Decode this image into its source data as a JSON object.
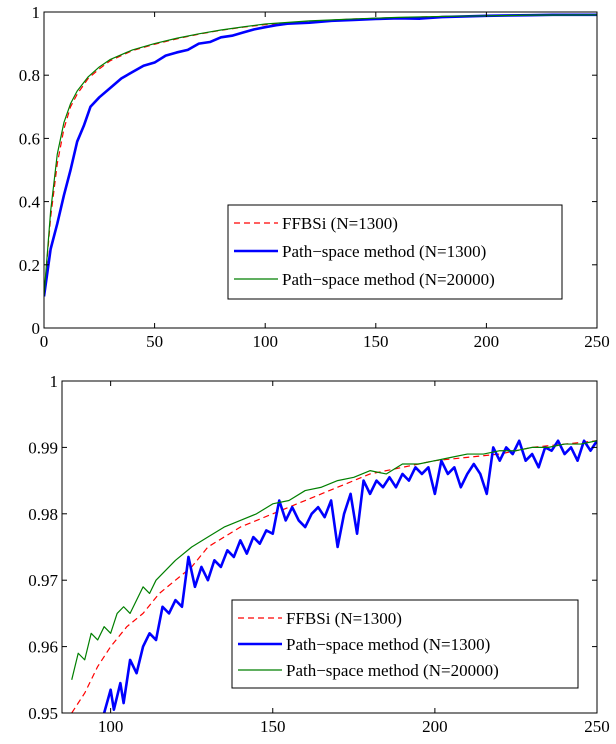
{
  "chart_data": [
    {
      "type": "line",
      "title": "",
      "xlabel": "",
      "ylabel": "",
      "xlim": [
        0,
        250
      ],
      "ylim": [
        0,
        1
      ],
      "x_ticks": [
        0,
        50,
        100,
        150,
        200,
        250
      ],
      "y_ticks": [
        0,
        0.2,
        0.4,
        0.6,
        0.8,
        1
      ],
      "x_tick_labels": [
        "0",
        "50",
        "100",
        "150",
        "200",
        "250"
      ],
      "y_tick_labels": [
        "0",
        "0.2",
        "0.4",
        "0.6",
        "0.8",
        "1"
      ],
      "grid": false,
      "legend_position": "lower-right",
      "series": [
        {
          "name": "FFBSi (N=1300)",
          "color": "#ff0000",
          "style": "dashed",
          "x": [
            0,
            3,
            6,
            9,
            12,
            15,
            20,
            25,
            30,
            40,
            50,
            60,
            70,
            80,
            90,
            100,
            120,
            140,
            160,
            180,
            200,
            220,
            250
          ],
          "y": [
            0.1,
            0.35,
            0.52,
            0.63,
            0.7,
            0.74,
            0.79,
            0.82,
            0.846,
            0.878,
            0.898,
            0.915,
            0.93,
            0.942,
            0.952,
            0.96,
            0.97,
            0.978,
            0.982,
            0.986,
            0.988,
            0.99,
            0.992
          ]
        },
        {
          "name": "Path−space method (N=1300)",
          "color": "#0000ff",
          "style": "solid",
          "x": [
            0,
            3,
            6,
            9,
            12,
            15,
            18,
            21,
            25,
            30,
            35,
            40,
            45,
            50,
            55,
            60,
            65,
            70,
            75,
            80,
            85,
            90,
            95,
            100,
            105,
            110,
            120,
            130,
            140,
            150,
            160,
            170,
            180,
            190,
            200,
            210,
            220,
            230,
            240,
            250
          ],
          "y": [
            0.1,
            0.25,
            0.33,
            0.42,
            0.5,
            0.59,
            0.64,
            0.7,
            0.73,
            0.76,
            0.79,
            0.81,
            0.83,
            0.84,
            0.862,
            0.872,
            0.88,
            0.9,
            0.905,
            0.92,
            0.925,
            0.935,
            0.945,
            0.952,
            0.958,
            0.963,
            0.966,
            0.972,
            0.975,
            0.978,
            0.98,
            0.979,
            0.984,
            0.986,
            0.988,
            0.989,
            0.99,
            0.991,
            0.991,
            0.991
          ]
        },
        {
          "name": "Path−space method (N=20000)",
          "color": "#007f00",
          "style": "solid",
          "x": [
            0,
            3,
            6,
            9,
            12,
            15,
            20,
            25,
            30,
            40,
            50,
            60,
            70,
            80,
            90,
            100,
            120,
            140,
            160,
            180,
            200,
            220,
            250
          ],
          "y": [
            0.1,
            0.37,
            0.55,
            0.65,
            0.71,
            0.75,
            0.795,
            0.826,
            0.85,
            0.88,
            0.9,
            0.917,
            0.931,
            0.943,
            0.953,
            0.962,
            0.972,
            0.978,
            0.983,
            0.986,
            0.988,
            0.99,
            0.991
          ]
        }
      ]
    },
    {
      "type": "line",
      "title": "",
      "xlabel": "",
      "ylabel": "",
      "xlim": [
        85,
        250
      ],
      "ylim": [
        0.95,
        1
      ],
      "x_ticks": [
        100,
        150,
        200,
        250
      ],
      "y_ticks": [
        0.95,
        0.96,
        0.97,
        0.98,
        0.99,
        1
      ],
      "x_tick_labels": [
        "100",
        "150",
        "200",
        "250"
      ],
      "y_tick_labels": [
        "0.95",
        "0.96",
        "0.97",
        "0.98",
        "0.99",
        "1"
      ],
      "grid": false,
      "legend_position": "lower-right",
      "series": [
        {
          "name": "FFBSi (N=1300)",
          "color": "#ff0000",
          "style": "dashed",
          "x": [
            88,
            92,
            96,
            100,
            105,
            110,
            115,
            120,
            125,
            130,
            140,
            150,
            160,
            170,
            180,
            190,
            200,
            210,
            220,
            230,
            240,
            250
          ],
          "y": [
            0.95,
            0.953,
            0.957,
            0.96,
            0.963,
            0.965,
            0.968,
            0.97,
            0.972,
            0.975,
            0.978,
            0.98,
            0.982,
            0.984,
            0.986,
            0.987,
            0.988,
            0.9885,
            0.989,
            0.99,
            0.9905,
            0.991
          ]
        },
        {
          "name": "Path−space method (N=1300)",
          "color": "#0000ff",
          "style": "solid",
          "x": [
            98,
            100,
            101,
            103,
            104,
            106,
            108,
            110,
            112,
            114,
            116,
            118,
            120,
            122,
            124,
            126,
            128,
            130,
            132,
            134,
            136,
            138,
            140,
            142,
            144,
            146,
            148,
            150,
            152,
            154,
            156,
            158,
            160,
            162,
            164,
            166,
            168,
            170,
            172,
            174,
            176,
            178,
            180,
            182,
            184,
            186,
            188,
            190,
            192,
            194,
            196,
            198,
            200,
            202,
            204,
            206,
            208,
            210,
            212,
            214,
            216,
            218,
            220,
            222,
            224,
            226,
            228,
            230,
            232,
            234,
            236,
            238,
            240,
            242,
            244,
            246,
            248,
            250
          ],
          "y": [
            0.95,
            0.9535,
            0.9505,
            0.9545,
            0.9515,
            0.958,
            0.956,
            0.96,
            0.962,
            0.961,
            0.966,
            0.965,
            0.967,
            0.966,
            0.9735,
            0.969,
            0.972,
            0.97,
            0.973,
            0.972,
            0.9745,
            0.9735,
            0.976,
            0.974,
            0.9765,
            0.9755,
            0.9775,
            0.977,
            0.982,
            0.979,
            0.981,
            0.979,
            0.978,
            0.98,
            0.981,
            0.9795,
            0.982,
            0.975,
            0.98,
            0.983,
            0.977,
            0.985,
            0.983,
            0.985,
            0.984,
            0.9855,
            0.984,
            0.986,
            0.985,
            0.987,
            0.986,
            0.987,
            0.983,
            0.988,
            0.986,
            0.987,
            0.984,
            0.986,
            0.9875,
            0.986,
            0.983,
            0.99,
            0.988,
            0.99,
            0.989,
            0.991,
            0.988,
            0.989,
            0.987,
            0.99,
            0.9895,
            0.991,
            0.989,
            0.99,
            0.988,
            0.991,
            0.9895,
            0.991
          ]
        },
        {
          "name": "Path−space method (N=20000)",
          "color": "#007f00",
          "style": "solid",
          "x": [
            88,
            90,
            92,
            94,
            96,
            98,
            100,
            102,
            104,
            106,
            108,
            110,
            112,
            114,
            116,
            118,
            120,
            125,
            130,
            135,
            140,
            145,
            150,
            155,
            160,
            165,
            170,
            175,
            180,
            185,
            190,
            195,
            200,
            205,
            210,
            215,
            220,
            225,
            230,
            235,
            240,
            245,
            250
          ],
          "y": [
            0.955,
            0.959,
            0.958,
            0.962,
            0.961,
            0.963,
            0.962,
            0.965,
            0.966,
            0.965,
            0.967,
            0.969,
            0.968,
            0.97,
            0.971,
            0.972,
            0.973,
            0.975,
            0.9765,
            0.978,
            0.979,
            0.98,
            0.9815,
            0.982,
            0.9835,
            0.984,
            0.985,
            0.9855,
            0.9865,
            0.986,
            0.9875,
            0.9875,
            0.988,
            0.9885,
            0.989,
            0.989,
            0.9895,
            0.9895,
            0.99,
            0.99,
            0.9905,
            0.9905,
            0.991
          ]
        }
      ]
    }
  ]
}
